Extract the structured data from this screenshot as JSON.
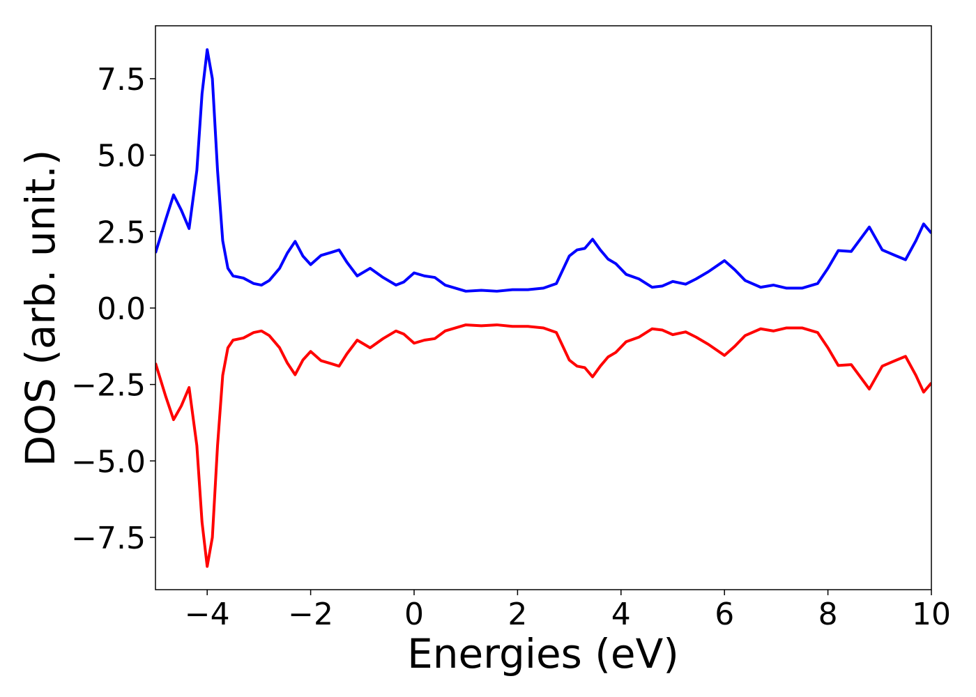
{
  "chart_data": {
    "type": "line",
    "xlabel": "Energies (eV)",
    "ylabel": "DOS (arb. unit.)",
    "x": [
      -5,
      -4.8,
      -4.65,
      -4.5,
      -4.35,
      -4.2,
      -4.1,
      -4.0,
      -3.9,
      -3.8,
      -3.7,
      -3.6,
      -3.5,
      -3.3,
      -3.1,
      -2.95,
      -2.8,
      -2.6,
      -2.45,
      -2.3,
      -2.15,
      -2.0,
      -1.8,
      -1.6,
      -1.45,
      -1.3,
      -1.1,
      -0.85,
      -0.6,
      -0.35,
      -0.2,
      0,
      0.2,
      0.4,
      0.6,
      1.0,
      1.3,
      1.6,
      1.9,
      2.2,
      2.5,
      2.75,
      3.0,
      3.15,
      3.3,
      3.45,
      3.6,
      3.75,
      3.9,
      4.1,
      4.35,
      4.6,
      4.8,
      5.0,
      5.25,
      5.45,
      5.7,
      6.0,
      6.2,
      6.4,
      6.7,
      6.95,
      7.2,
      7.5,
      7.8,
      8.0,
      8.2,
      8.45,
      8.8,
      9.05,
      9.3,
      9.5,
      9.7,
      9.85,
      10.0
    ],
    "series": [
      {
        "color": "#0000ff",
        "values": [
          1.8,
          2.9,
          3.7,
          3.2,
          2.6,
          4.5,
          7.0,
          8.45,
          7.5,
          4.5,
          2.2,
          1.3,
          1.05,
          0.98,
          0.8,
          0.75,
          0.9,
          1.3,
          1.8,
          2.18,
          1.7,
          1.42,
          1.72,
          1.82,
          1.9,
          1.5,
          1.05,
          1.3,
          1.0,
          0.75,
          0.85,
          1.15,
          1.05,
          1.0,
          0.75,
          0.55,
          0.58,
          0.55,
          0.6,
          0.6,
          0.65,
          0.8,
          1.7,
          1.9,
          1.95,
          2.25,
          1.9,
          1.6,
          1.45,
          1.1,
          0.95,
          0.68,
          0.72,
          0.87,
          0.78,
          0.95,
          1.2,
          1.55,
          1.25,
          0.9,
          0.68,
          0.75,
          0.65,
          0.65,
          0.8,
          1.3,
          1.88,
          1.85,
          2.65,
          1.9,
          1.72,
          1.58,
          2.2,
          2.75,
          2.45
        ]
      },
      {
        "color": "#ff0000",
        "values": [
          -1.8,
          -2.9,
          -3.65,
          -3.2,
          -2.6,
          -4.5,
          -7.0,
          -8.45,
          -7.5,
          -4.5,
          -2.2,
          -1.3,
          -1.05,
          -0.98,
          -0.8,
          -0.75,
          -0.9,
          -1.3,
          -1.8,
          -2.18,
          -1.7,
          -1.42,
          -1.72,
          -1.82,
          -1.9,
          -1.5,
          -1.05,
          -1.3,
          -1.0,
          -0.75,
          -0.85,
          -1.15,
          -1.05,
          -1.0,
          -0.75,
          -0.55,
          -0.58,
          -0.55,
          -0.6,
          -0.6,
          -0.65,
          -0.8,
          -1.7,
          -1.9,
          -1.95,
          -2.25,
          -1.9,
          -1.6,
          -1.45,
          -1.1,
          -0.95,
          -0.68,
          -0.72,
          -0.87,
          -0.78,
          -0.95,
          -1.2,
          -1.55,
          -1.25,
          -0.9,
          -0.68,
          -0.75,
          -0.65,
          -0.65,
          -0.8,
          -1.3,
          -1.88,
          -1.85,
          -2.65,
          -1.9,
          -1.72,
          -1.58,
          -2.2,
          -2.75,
          -2.45
        ]
      }
    ],
    "xlim": [
      -5,
      10
    ],
    "xticks": [
      {
        "value": -4,
        "label": "−4"
      },
      {
        "value": -2,
        "label": "−2"
      },
      0,
      2,
      4,
      6,
      8,
      10
    ],
    "ylim": [
      -9.21,
      9.23
    ],
    "yticks": [
      {
        "value": -7.5,
        "label": "−7.5"
      },
      {
        "value": -5,
        "label": "−5.0"
      },
      {
        "value": -2.5,
        "label": "−2.5"
      },
      {
        "value": 0,
        "label": "0.0"
      },
      {
        "value": 2.5,
        "label": "2.5"
      },
      {
        "value": 5,
        "label": "5.0"
      },
      7.5
    ]
  }
}
